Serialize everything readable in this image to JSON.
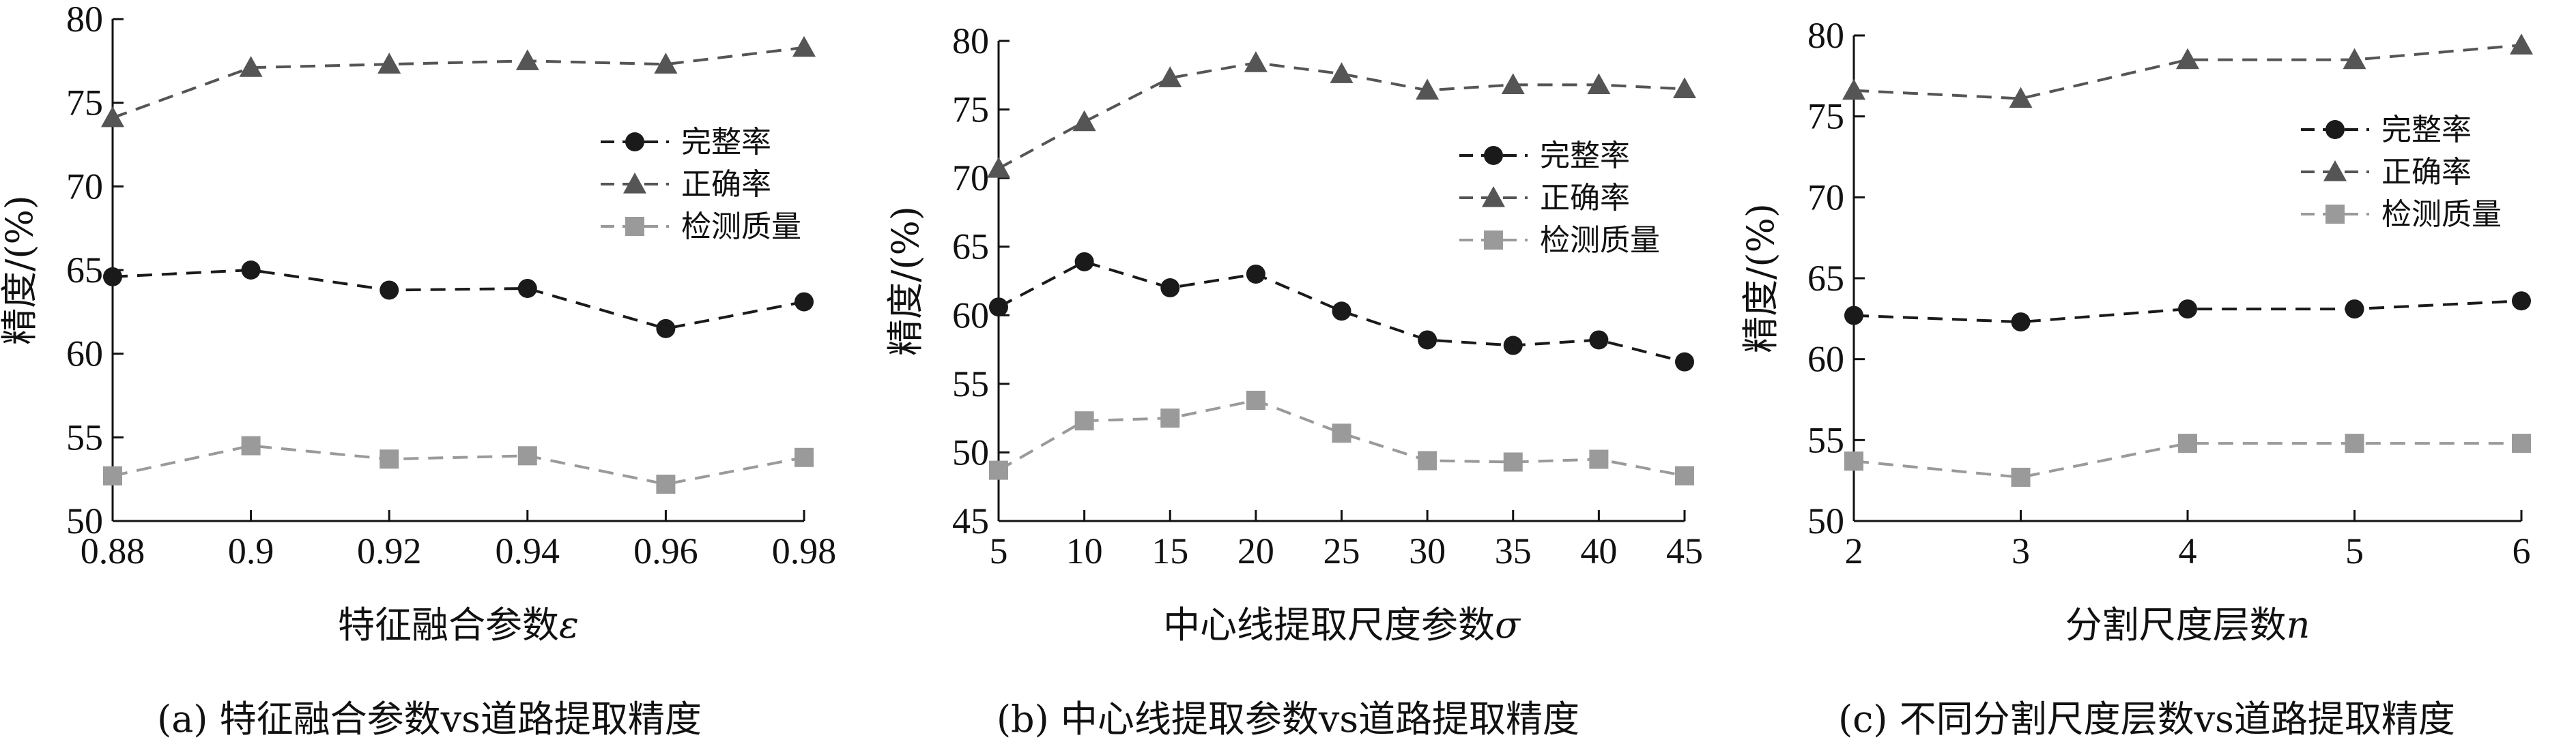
{
  "chart_data": [
    {
      "type": "line",
      "caption": "(a) 特征融合参数vs道路提取精度",
      "xlabel": "特征融合参数",
      "xlabel_symbol": "ε",
      "ylabel": "精度/(%)",
      "x": [
        0.88,
        0.9,
        0.92,
        0.94,
        0.96,
        0.98
      ],
      "x_tick_labels": [
        "0.88",
        "0.9",
        "0.92",
        "0.94",
        "0.96",
        "0.98"
      ],
      "xlim": [
        0.88,
        0.98
      ],
      "ylim": [
        50,
        80
      ],
      "y_ticks": [
        50,
        55,
        60,
        65,
        70,
        75,
        80
      ],
      "grid": false,
      "legend_position": "top-right",
      "series": [
        {
          "name": "完整率",
          "marker": "circle",
          "color": "#1a1a1a",
          "values": [
            64.6,
            65.0,
            63.8,
            63.9,
            61.5,
            63.1
          ]
        },
        {
          "name": "正确率",
          "marker": "triangle",
          "color": "#555555",
          "values": [
            74.1,
            77.1,
            77.3,
            77.5,
            77.3,
            78.3
          ]
        },
        {
          "name": "检测质量",
          "marker": "square",
          "color": "#9a9a9a",
          "values": [
            52.7,
            54.5,
            53.7,
            53.9,
            52.2,
            53.8
          ]
        }
      ]
    },
    {
      "type": "line",
      "caption": "(b) 中心线提取参数vs道路提取精度",
      "xlabel": "中心线提取尺度参数",
      "xlabel_symbol": "σ",
      "ylabel": "精度/(%)",
      "x": [
        5,
        10,
        15,
        20,
        25,
        30,
        35,
        40,
        45
      ],
      "x_tick_labels": [
        "5",
        "10",
        "15",
        "20",
        "25",
        "30",
        "35",
        "40",
        "45"
      ],
      "xlim": [
        5,
        45
      ],
      "ylim": [
        45,
        80
      ],
      "y_ticks": [
        45,
        50,
        55,
        60,
        65,
        70,
        75,
        80
      ],
      "grid": false,
      "legend_position": "top-right",
      "series": [
        {
          "name": "完整率",
          "marker": "circle",
          "color": "#1a1a1a",
          "values": [
            60.6,
            63.9,
            62.0,
            63.0,
            60.3,
            58.2,
            57.8,
            58.2,
            56.6
          ]
        },
        {
          "name": "正确率",
          "marker": "triangle",
          "color": "#555555",
          "values": [
            70.7,
            74.1,
            77.3,
            78.4,
            77.6,
            76.4,
            76.8,
            76.8,
            76.5
          ]
        },
        {
          "name": "检测质量",
          "marker": "square",
          "color": "#9a9a9a",
          "values": [
            48.7,
            52.3,
            52.5,
            53.8,
            51.4,
            49.4,
            49.3,
            49.5,
            48.3
          ]
        }
      ]
    },
    {
      "type": "line",
      "caption": "(c) 不同分割尺度层数vs道路提取精度",
      "xlabel": "分割尺度层数",
      "xlabel_symbol": "n",
      "ylabel": "精度/(%)",
      "x": [
        2,
        3,
        4,
        5,
        6
      ],
      "x_tick_labels": [
        "2",
        "3",
        "4",
        "5",
        "6"
      ],
      "xlim": [
        2,
        6
      ],
      "ylim": [
        50,
        80
      ],
      "y_ticks": [
        50,
        55,
        60,
        65,
        70,
        75,
        80
      ],
      "grid": false,
      "legend_position": "top-right",
      "series": [
        {
          "name": "完整率",
          "marker": "circle",
          "color": "#1a1a1a",
          "values": [
            62.7,
            62.3,
            63.1,
            63.1,
            63.6
          ]
        },
        {
          "name": "正确率",
          "marker": "triangle",
          "color": "#555555",
          "values": [
            76.6,
            76.1,
            78.5,
            78.5,
            79.4
          ]
        },
        {
          "name": "检测质量",
          "marker": "square",
          "color": "#9a9a9a",
          "values": [
            53.7,
            52.7,
            54.8,
            54.8,
            54.8
          ]
        }
      ]
    }
  ]
}
